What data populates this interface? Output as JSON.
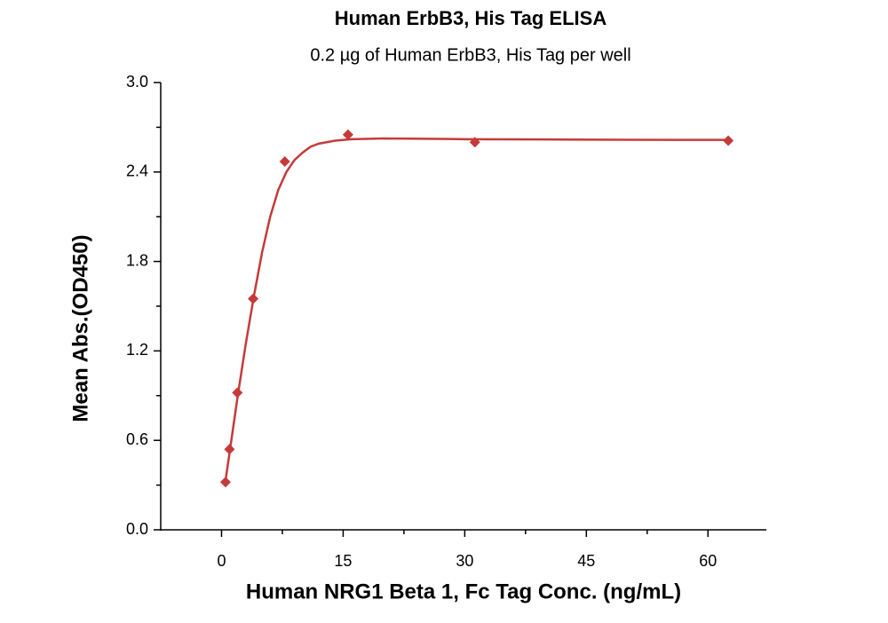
{
  "chart_data": {
    "type": "scatter",
    "title": "Human ErbB3, His Tag ELISA",
    "subtitle": "0.2 µg of Human ErbB3, His Tag per well",
    "x_label": "Human NRG1 Beta 1, Fc Tag Conc. (ng/mL)",
    "y_label": "Mean Abs.(OD450)",
    "color": "#c43b3a",
    "x": [
      0.49,
      0.98,
      1.95,
      3.9,
      7.8,
      15.6,
      31.25,
      62.5
    ],
    "values": [
      0.32,
      0.54,
      0.92,
      1.55,
      2.47,
      2.65,
      2.6,
      2.61
    ],
    "fit": {
      "x": [
        0.49,
        1,
        2,
        3,
        4,
        5,
        6,
        7,
        8,
        9,
        10,
        11,
        12,
        14,
        16,
        20,
        25,
        30,
        40,
        50,
        62.5
      ],
      "values": [
        0.33,
        0.52,
        0.9,
        1.25,
        1.57,
        1.86,
        2.1,
        2.28,
        2.4,
        2.48,
        2.53,
        2.57,
        2.59,
        2.61,
        2.62,
        2.625,
        2.623,
        2.62,
        2.618,
        2.616,
        2.615
      ]
    },
    "xlim": [
      -7.5,
      67.2
    ],
    "ylim": [
      0,
      3
    ],
    "xticks": [
      0,
      15,
      30,
      45,
      60
    ],
    "yticks": [
      {
        "value": 0,
        "label": "0.0"
      },
      0.6,
      1.2,
      1.8,
      2.4,
      {
        "value": 3,
        "label": "3.0"
      }
    ],
    "xminorticks": [
      7.5,
      22.5,
      37.5,
      52.5
    ],
    "yminorticks": [
      0.3,
      0.9,
      1.5,
      2.1,
      2.7
    ]
  }
}
